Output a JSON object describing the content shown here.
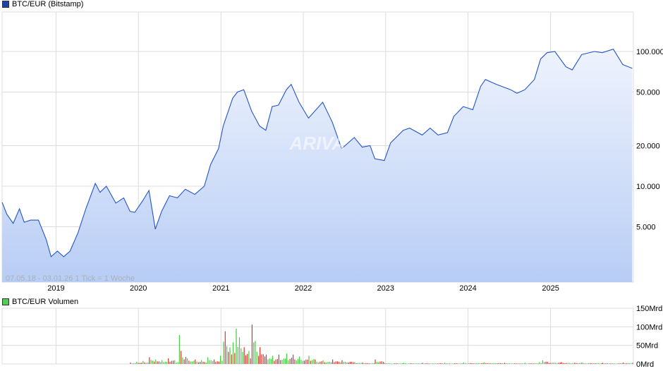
{
  "chart_data": [
    {
      "type": "area",
      "legend": "BTC/EUR (Bitstamp)",
      "info_text": "07.05.18 - 03.01.26   1 Tick = 1 Woche",
      "watermark": "ARIVA",
      "x_ticks": [
        "2019",
        "2020",
        "2021",
        "2022",
        "2023",
        "2024",
        "2025"
      ],
      "y_ticks": [
        "100.000",
        "50.000",
        "20.000",
        "10.000",
        "5.000"
      ],
      "y_tick_values": [
        100000,
        50000,
        20000,
        10000,
        5000
      ],
      "y_scale": "log",
      "x_range": [
        "2018-05-07",
        "2026-01-03"
      ],
      "grid": true,
      "colors": {
        "line": "#2255cc",
        "fill_top": "#eef3fd",
        "fill_bottom": "#b8cdf5",
        "legend": "#1c46a8"
      },
      "series": [
        {
          "name": "BTC/EUR (Bitstamp)",
          "points": [
            [
              "2018-05-07",
              7600
            ],
            [
              "2018-05-28",
              6200
            ],
            [
              "2018-06-25",
              5300
            ],
            [
              "2018-07-23",
              6800
            ],
            [
              "2018-08-13",
              5400
            ],
            [
              "2018-09-10",
              5600
            ],
            [
              "2018-10-15",
              5600
            ],
            [
              "2018-11-19",
              4000
            ],
            [
              "2018-12-10",
              3000
            ],
            [
              "2019-01-07",
              3300
            ],
            [
              "2019-02-04",
              3000
            ],
            [
              "2019-03-04",
              3300
            ],
            [
              "2019-04-08",
              4500
            ],
            [
              "2019-05-13",
              6800
            ],
            [
              "2019-06-24",
              10500
            ],
            [
              "2019-07-15",
              9000
            ],
            [
              "2019-08-12",
              10000
            ],
            [
              "2019-09-23",
              7500
            ],
            [
              "2019-10-28",
              8200
            ],
            [
              "2019-11-25",
              6500
            ],
            [
              "2019-12-16",
              6400
            ],
            [
              "2020-01-20",
              7800
            ],
            [
              "2020-02-17",
              9300
            ],
            [
              "2020-03-16",
              4800
            ],
            [
              "2020-04-13",
              6500
            ],
            [
              "2020-05-18",
              8500
            ],
            [
              "2020-06-22",
              8200
            ],
            [
              "2020-07-27",
              9500
            ],
            [
              "2020-09-07",
              8700
            ],
            [
              "2020-10-19",
              10000
            ],
            [
              "2020-11-16",
              14500
            ],
            [
              "2020-12-21",
              19000
            ],
            [
              "2021-01-11",
              28000
            ],
            [
              "2021-02-22",
              45000
            ],
            [
              "2021-03-15",
              50000
            ],
            [
              "2021-04-12",
              52000
            ],
            [
              "2021-05-17",
              36000
            ],
            [
              "2021-06-21",
              28000
            ],
            [
              "2021-07-19",
              26000
            ],
            [
              "2021-08-16",
              39000
            ],
            [
              "2021-09-13",
              40000
            ],
            [
              "2021-10-18",
              52000
            ],
            [
              "2021-11-08",
              57000
            ],
            [
              "2021-12-13",
              42000
            ],
            [
              "2022-01-24",
              32000
            ],
            [
              "2022-03-28",
              42000
            ],
            [
              "2022-05-09",
              30000
            ],
            [
              "2022-06-20",
              19000
            ],
            [
              "2022-08-15",
              23000
            ],
            [
              "2022-09-19",
              19500
            ],
            [
              "2022-10-24",
              20000
            ],
            [
              "2022-11-14",
              16000
            ],
            [
              "2022-12-26",
              15500
            ],
            [
              "2023-01-23",
              21000
            ],
            [
              "2023-03-20",
              26000
            ],
            [
              "2023-04-17",
              27000
            ],
            [
              "2023-06-12",
              24000
            ],
            [
              "2023-07-17",
              27000
            ],
            [
              "2023-08-21",
              24000
            ],
            [
              "2023-10-02",
              25000
            ],
            [
              "2023-10-30",
              33000
            ],
            [
              "2023-12-11",
              39000
            ],
            [
              "2024-01-22",
              37000
            ],
            [
              "2024-02-26",
              55000
            ],
            [
              "2024-03-18",
              62000
            ],
            [
              "2024-05-06",
              57000
            ],
            [
              "2024-07-08",
              52000
            ],
            [
              "2024-08-05",
              49000
            ],
            [
              "2024-09-09",
              52000
            ],
            [
              "2024-10-21",
              62000
            ],
            [
              "2024-11-18",
              88000
            ],
            [
              "2024-12-16",
              98000
            ],
            [
              "2025-01-20",
              100000
            ],
            [
              "2025-03-10",
              77000
            ],
            [
              "2025-04-07",
              73000
            ],
            [
              "2025-05-19",
              95000
            ],
            [
              "2025-07-14",
              100000
            ],
            [
              "2025-08-18",
              98000
            ],
            [
              "2025-10-06",
              104000
            ],
            [
              "2025-11-17",
              80000
            ],
            [
              "2025-12-29",
              75000
            ]
          ]
        }
      ]
    },
    {
      "type": "bar",
      "legend": "BTC/EUR Volumen",
      "y_ticks": [
        "150Mrd",
        "100Mrd",
        "50Mrd",
        "0Mrd"
      ],
      "y_tick_values": [
        150,
        100,
        50,
        0
      ],
      "ylim": [
        0,
        150
      ],
      "unit": "Mrd",
      "colors": {
        "up": "#44cc44",
        "down": "#dd3333",
        "legend": "#55cc55"
      },
      "series": [
        {
          "name": "BTC/EUR Volumen",
          "points": [
            [
              "2019-11-25",
              4,
              "down"
            ],
            [
              "2019-12-23",
              6,
              "up"
            ],
            [
              "2020-01-20",
              8,
              "up"
            ],
            [
              "2020-02-17",
              18,
              "down"
            ],
            [
              "2020-03-16",
              12,
              "up"
            ],
            [
              "2020-04-13",
              10,
              "up"
            ],
            [
              "2020-05-11",
              15,
              "down"
            ],
            [
              "2020-06-08",
              10,
              "up"
            ],
            [
              "2020-06-29",
              78,
              "up"
            ],
            [
              "2020-07-06",
              35,
              "down"
            ],
            [
              "2020-08-03",
              15,
              "up"
            ],
            [
              "2020-09-07",
              12,
              "down"
            ],
            [
              "2020-10-05",
              10,
              "up"
            ],
            [
              "2020-11-02",
              18,
              "up"
            ],
            [
              "2020-11-30",
              12,
              "down"
            ],
            [
              "2020-12-28",
              22,
              "up"
            ],
            [
              "2021-01-11",
              60,
              "up"
            ],
            [
              "2021-01-18",
              88,
              "down"
            ],
            [
              "2021-02-08",
              45,
              "up"
            ],
            [
              "2021-02-22",
              58,
              "up"
            ],
            [
              "2021-03-08",
              95,
              "up"
            ],
            [
              "2021-03-22",
              72,
              "up"
            ],
            [
              "2021-04-12",
              45,
              "down"
            ],
            [
              "2021-05-03",
              35,
              "up"
            ],
            [
              "2021-05-17",
              106,
              "down"
            ],
            [
              "2021-05-31",
              62,
              "up"
            ],
            [
              "2021-06-21",
              45,
              "down"
            ],
            [
              "2021-07-19",
              25,
              "down"
            ],
            [
              "2021-08-16",
              22,
              "up"
            ],
            [
              "2021-09-13",
              25,
              "down"
            ],
            [
              "2021-10-18",
              28,
              "up"
            ],
            [
              "2021-11-15",
              25,
              "down"
            ],
            [
              "2021-12-13",
              20,
              "up"
            ],
            [
              "2022-01-24",
              22,
              "up"
            ],
            [
              "2022-02-21",
              12,
              "down"
            ],
            [
              "2022-03-28",
              10,
              "up"
            ],
            [
              "2022-05-09",
              12,
              "down"
            ],
            [
              "2022-06-20",
              10,
              "down"
            ],
            [
              "2022-08-15",
              5,
              "up"
            ],
            [
              "2022-09-19",
              4,
              "down"
            ],
            [
              "2022-11-14",
              12,
              "down"
            ],
            [
              "2022-12-26",
              3,
              "up"
            ],
            [
              "2023-03-20",
              3,
              "up"
            ],
            [
              "2023-06-12",
              3,
              "down"
            ],
            [
              "2023-09-18",
              3,
              "up"
            ],
            [
              "2023-12-11",
              4,
              "up"
            ],
            [
              "2024-03-11",
              4,
              "up"
            ],
            [
              "2024-06-10",
              3,
              "down"
            ],
            [
              "2024-09-09",
              3,
              "up"
            ],
            [
              "2024-11-11",
              5,
              "up"
            ],
            [
              "2024-11-25",
              10,
              "up"
            ],
            [
              "2024-12-16",
              6,
              "down"
            ],
            [
              "2025-02-17",
              5,
              "down"
            ],
            [
              "2025-05-19",
              4,
              "up"
            ],
            [
              "2025-08-18",
              3,
              "down"
            ],
            [
              "2025-11-17",
              4,
              "down"
            ],
            [
              "2025-12-29",
              3,
              "down"
            ]
          ]
        }
      ]
    }
  ]
}
